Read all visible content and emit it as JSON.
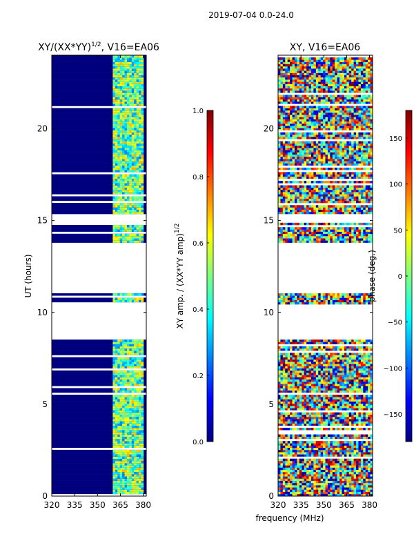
{
  "suptitle": "2019-07-04 0.0-24.0",
  "xlabel": "frequency (MHz)",
  "colormap": [
    "#00007f",
    "#0000ff",
    "#007fff",
    "#00ffff",
    "#7fff7f",
    "#ffff00",
    "#ff7f00",
    "#ff0000",
    "#7f0000"
  ],
  "chart_data": [
    {
      "type": "heatmap",
      "title_main": "XY/(XX*YY)",
      "title_exp": "1/2",
      "title_suffix": ", V16=EA06",
      "ylabel": "UT (hours)",
      "xlabel": "frequency (MHz)",
      "xlim": [
        320,
        382
      ],
      "ylim": [
        0,
        24
      ],
      "xticks": [
        320,
        335,
        350,
        365,
        380
      ],
      "yticks": [
        0,
        5,
        10,
        15,
        20
      ],
      "data_gaps_hours": [
        [
          8.5,
          10.4
        ],
        [
          11.1,
          13.8
        ],
        [
          14.9,
          15.3
        ]
      ],
      "bright_band_mhz": [
        360,
        380
      ],
      "colorbar": {
        "label_main": "XY amp. / (XX*YY amp)",
        "label_exp": "1/2",
        "range": [
          0.0,
          1.0
        ],
        "ticks": [
          "0.0",
          "0.2",
          "0.4",
          "0.6",
          "0.8",
          "1.0"
        ]
      }
    },
    {
      "type": "heatmap",
      "title": "XY, V16=EA06",
      "ylabel": "",
      "xlabel": "frequency (MHz)",
      "xlim": [
        320,
        382
      ],
      "ylim": [
        0,
        24
      ],
      "xticks": [
        320,
        335,
        350,
        365,
        380
      ],
      "yticks": [
        0,
        5,
        10,
        15,
        20
      ],
      "data_gaps_hours": [
        [
          8.5,
          10.4
        ],
        [
          11.1,
          13.8
        ],
        [
          14.9,
          15.3
        ]
      ],
      "colorbar": {
        "label": "phase (deg.)",
        "range": [
          -180,
          180
        ],
        "ticks": [
          "150",
          "100",
          "50",
          "0",
          "−50",
          "−100",
          "−150"
        ],
        "tick_values": [
          150,
          100,
          50,
          0,
          -50,
          -100,
          -150
        ]
      }
    }
  ]
}
